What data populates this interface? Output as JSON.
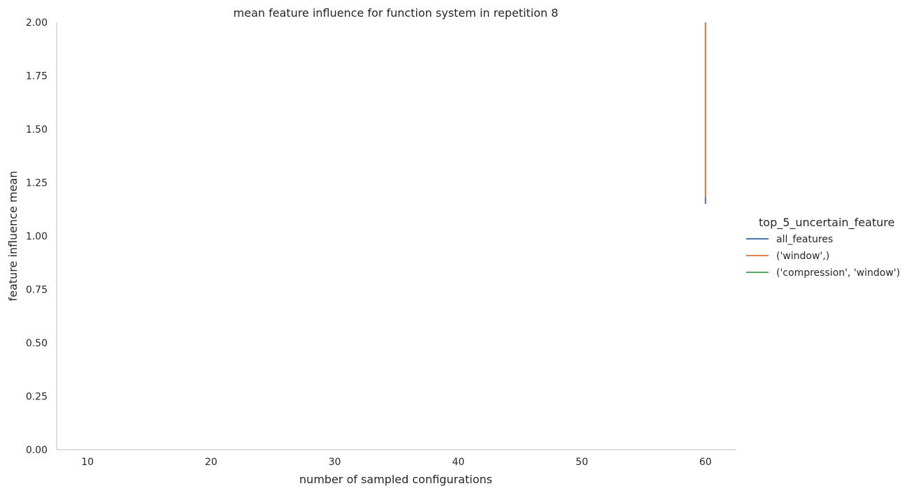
{
  "chart_data": {
    "type": "line",
    "title": "mean feature influence for function system in repetition 8",
    "xlabel": "number of sampled configurations",
    "ylabel": "feature influence mean",
    "xlim": [
      7.5,
      62.5
    ],
    "ylim": [
      0.0,
      2.0
    ],
    "xticks": [
      10,
      20,
      30,
      40,
      50,
      60
    ],
    "yticks": [
      0.0,
      0.25,
      0.5,
      0.75,
      1.0,
      1.25,
      1.5,
      1.75,
      2.0
    ],
    "xtick_labels": [
      "10",
      "20",
      "30",
      "40",
      "50",
      "60"
    ],
    "ytick_labels": [
      "0.00",
      "0.25",
      "0.50",
      "0.75",
      "1.00",
      "1.25",
      "1.50",
      "1.75",
      "2.00"
    ],
    "grid": false,
    "legend": {
      "title": "top_5_uncertain_feature",
      "placement": "right"
    },
    "series": [
      {
        "name": "all_features",
        "color": "#4c72b0",
        "points": [
          [
            60,
            1.15
          ],
          [
            60,
            2.0
          ]
        ]
      },
      {
        "name": "('window',)",
        "color": "#dd8452",
        "points": [
          [
            60,
            1.18
          ],
          [
            60,
            2.0
          ]
        ]
      },
      {
        "name": "('compression', 'window')",
        "color": "#55a868",
        "points": []
      }
    ]
  }
}
